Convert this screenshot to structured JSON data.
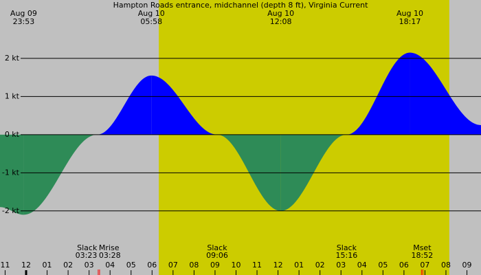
{
  "chart_data": {
    "type": "area",
    "title": "Hampton Roads entrance, midchannel (depth 8 ft), Virginia Current",
    "x": [
      -1.244,
      -0.117,
      3.383,
      5.967,
      9.1,
      12.133,
      15.267,
      18.283,
      21.67
    ],
    "values": [
      -1.9,
      -2.1,
      0,
      1.55,
      0,
      -2.0,
      0,
      2.15,
      0.25
    ],
    "flood_color": "#0000ff",
    "ebb_color": "#2e8b57",
    "background_color": "#c0c0c0",
    "daylight_color": "#cccc00",
    "daylight": [
      6.32,
      20.16
    ],
    "xlim": [
      -1.244,
      21.67
    ],
    "ylim": [
      -3.68,
      3.53
    ],
    "yticks": [
      {
        "value": 2,
        "label": "2 kt"
      },
      {
        "value": 1,
        "label": "1 kt"
      },
      {
        "value": 0,
        "label": "0 kt"
      },
      {
        "value": -1,
        "label": "-1 kt"
      },
      {
        "value": -2,
        "label": "-2 kt"
      }
    ],
    "xticks": [
      {
        "value": -1,
        "label": "11"
      },
      {
        "value": 0,
        "label": "12"
      },
      {
        "value": 1,
        "label": "01"
      },
      {
        "value": 2,
        "label": "02"
      },
      {
        "value": 3,
        "label": "03"
      },
      {
        "value": 4,
        "label": "04"
      },
      {
        "value": 5,
        "label": "05"
      },
      {
        "value": 6,
        "label": "06"
      },
      {
        "value": 7,
        "label": "07"
      },
      {
        "value": 8,
        "label": "08"
      },
      {
        "value": 9,
        "label": "09"
      },
      {
        "value": 10,
        "label": "10"
      },
      {
        "value": 11,
        "label": "11"
      },
      {
        "value": 12,
        "label": "12"
      },
      {
        "value": 13,
        "label": "01"
      },
      {
        "value": 14,
        "label": "02"
      },
      {
        "value": 15,
        "label": "03"
      },
      {
        "value": 16,
        "label": "04"
      },
      {
        "value": 17,
        "label": "05"
      },
      {
        "value": 18,
        "label": "06"
      },
      {
        "value": 19,
        "label": "07"
      },
      {
        "value": 20,
        "label": "08"
      },
      {
        "value": 21,
        "label": "09"
      }
    ],
    "grid": true,
    "peak_events": [
      {
        "x": -0.117,
        "date": "Aug 09",
        "time": "23:53"
      },
      {
        "x": 5.967,
        "date": "Aug 10",
        "time": "05:58"
      },
      {
        "x": 12.133,
        "date": "Aug 10",
        "time": "12:08"
      },
      {
        "x": 18.283,
        "date": "Aug 10",
        "time": "18:17"
      }
    ],
    "bottom_events": [
      {
        "x": 3.383,
        "name": "Slack",
        "time": "03:23"
      },
      {
        "x": 3.467,
        "name": "Mrise",
        "time": "03:28",
        "color": "#ff0000"
      },
      {
        "x": 9.1,
        "name": "Slack",
        "time": "09:06"
      },
      {
        "x": 15.267,
        "name": "Slack",
        "time": "15:16"
      },
      {
        "x": 18.867,
        "name": "Mset",
        "time": "18:52",
        "color": "#ff0000"
      }
    ]
  }
}
